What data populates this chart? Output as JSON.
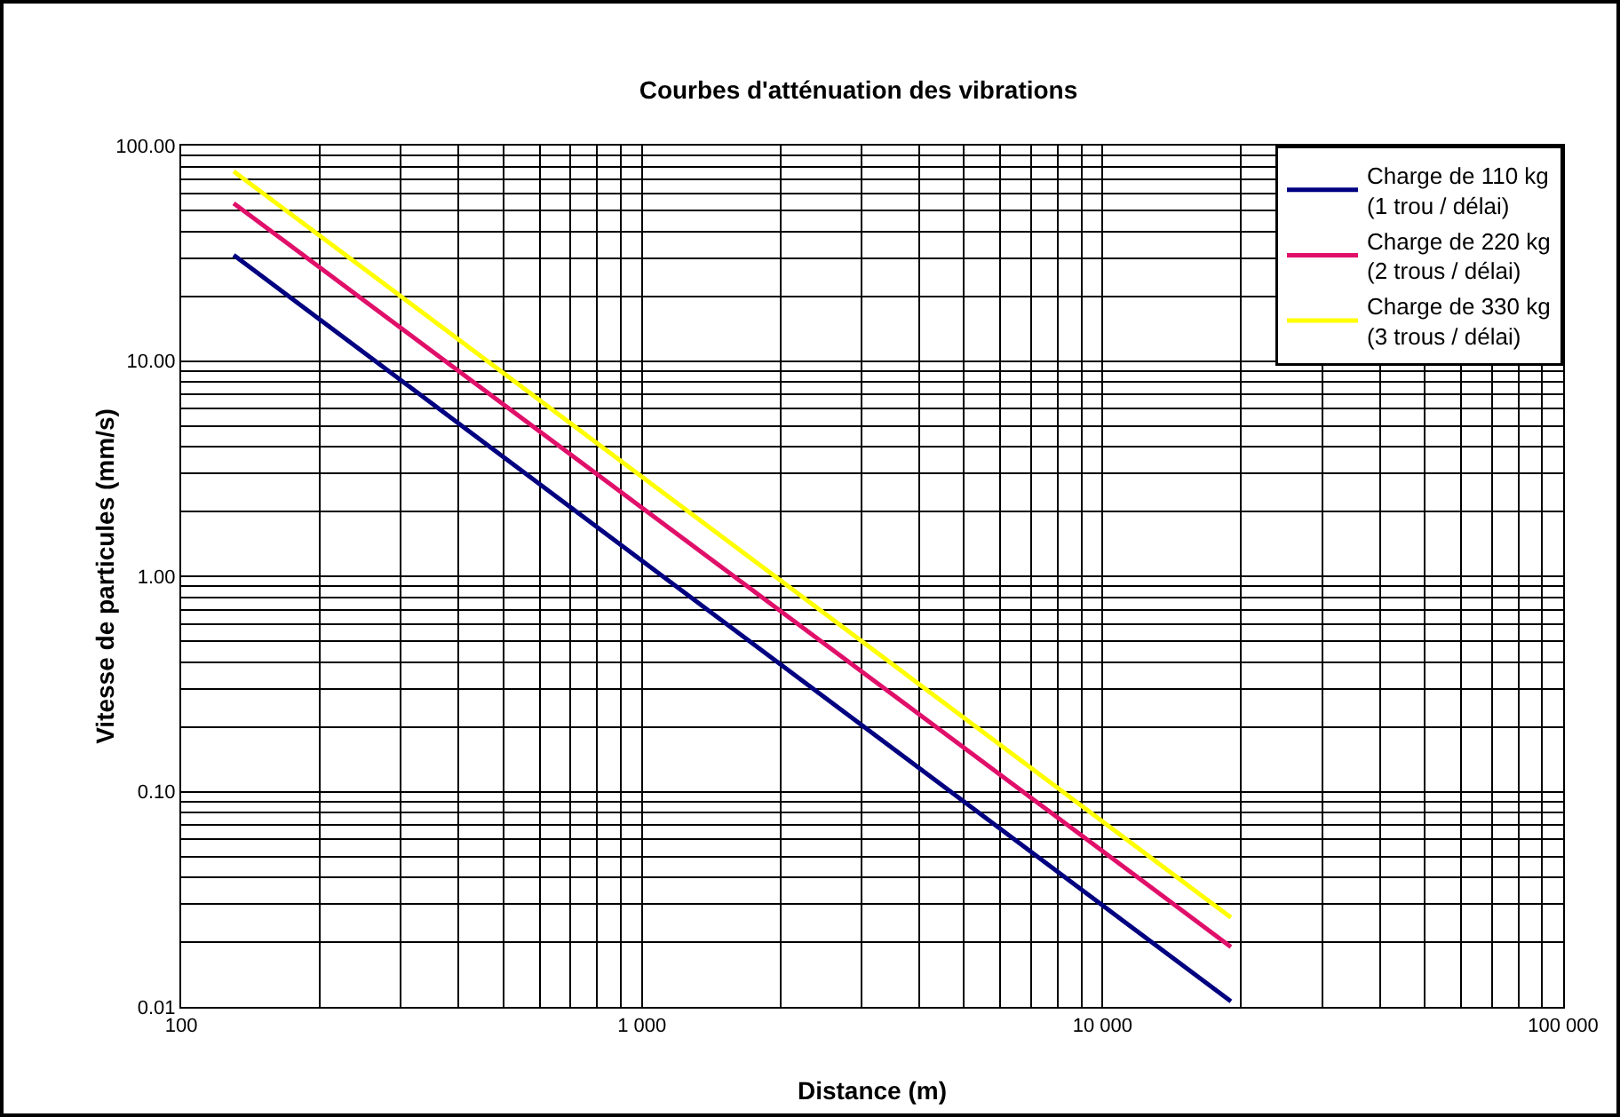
{
  "chart_data": {
    "type": "line",
    "title": "Courbes d'atténuation des vibrations",
    "xlabel": "Distance (m)",
    "ylabel": "Vitesse de particules (mm/s)",
    "log": "xy",
    "grid": true,
    "legend": "top right",
    "marker": "none",
    "line_style": "solid",
    "xlim": [
      100,
      100000
    ],
    "ylim": [
      0.01,
      100
    ],
    "xticks": [
      {
        "value": 100,
        "label": "100"
      },
      {
        "value": 200,
        "label": null
      },
      {
        "value": 300,
        "label": null
      },
      {
        "value": 400,
        "label": null
      },
      {
        "value": 500,
        "label": null
      },
      {
        "value": 600,
        "label": null
      },
      {
        "value": 700,
        "label": null
      },
      {
        "value": 800,
        "label": null
      },
      {
        "value": 900,
        "label": null
      },
      {
        "value": 1000,
        "label": "1 000"
      },
      {
        "value": 2000,
        "label": null
      },
      {
        "value": 3000,
        "label": null
      },
      {
        "value": 4000,
        "label": null
      },
      {
        "value": 5000,
        "label": null
      },
      {
        "value": 6000,
        "label": null
      },
      {
        "value": 7000,
        "label": null
      },
      {
        "value": 8000,
        "label": null
      },
      {
        "value": 9000,
        "label": null
      },
      {
        "value": 10000,
        "label": "10 000"
      },
      {
        "value": 20000,
        "label": null
      },
      {
        "value": 30000,
        "label": null
      },
      {
        "value": 40000,
        "label": null
      },
      {
        "value": 50000,
        "label": null
      },
      {
        "value": 60000,
        "label": null
      },
      {
        "value": 70000,
        "label": null
      },
      {
        "value": 80000,
        "label": null
      },
      {
        "value": 90000,
        "label": null
      },
      {
        "value": 100000,
        "label": "100 000"
      }
    ],
    "yticks": [
      {
        "value": 0.01,
        "label": "0.01"
      },
      {
        "value": 0.02,
        "label": null
      },
      {
        "value": 0.03,
        "label": null
      },
      {
        "value": 0.04,
        "label": null
      },
      {
        "value": 0.05,
        "label": null
      },
      {
        "value": 0.06,
        "label": null
      },
      {
        "value": 0.07,
        "label": null
      },
      {
        "value": 0.08,
        "label": null
      },
      {
        "value": 0.09,
        "label": null
      },
      {
        "value": 0.1,
        "label": "0.10"
      },
      {
        "value": 0.2,
        "label": null
      },
      {
        "value": 0.3,
        "label": null
      },
      {
        "value": 0.4,
        "label": null
      },
      {
        "value": 0.5,
        "label": null
      },
      {
        "value": 0.6,
        "label": null
      },
      {
        "value": 0.7,
        "label": null
      },
      {
        "value": 0.8,
        "label": null
      },
      {
        "value": 0.9,
        "label": null
      },
      {
        "value": 1,
        "label": "1.00"
      },
      {
        "value": 2,
        "label": null
      },
      {
        "value": 3,
        "label": null
      },
      {
        "value": 4,
        "label": null
      },
      {
        "value": 5,
        "label": null
      },
      {
        "value": 6,
        "label": null
      },
      {
        "value": 7,
        "label": null
      },
      {
        "value": 8,
        "label": null
      },
      {
        "value": 9,
        "label": null
      },
      {
        "value": 10,
        "label": "10.00"
      },
      {
        "value": 20,
        "label": null
      },
      {
        "value": 30,
        "label": null
      },
      {
        "value": 40,
        "label": null
      },
      {
        "value": 50,
        "label": null
      },
      {
        "value": 60,
        "label": null
      },
      {
        "value": 70,
        "label": null
      },
      {
        "value": 80,
        "label": null
      },
      {
        "value": 90,
        "label": null
      },
      {
        "value": 100,
        "label": "100.00"
      }
    ],
    "x": [
      130,
      19000
    ],
    "series": [
      {
        "name": "Charge de 110 kg\n(1 trou / délai)",
        "color": "#000080",
        "values": [
          31,
          0.0106
        ]
      },
      {
        "name": "Charge de 220 kg\n(2 trous / délai)",
        "color": "#e0106a",
        "values": [
          54,
          0.019
        ]
      },
      {
        "name": "Charge de 330 kg\n(3 trous / délai)",
        "color": "#ffff00",
        "values": [
          76,
          0.026
        ]
      }
    ]
  }
}
